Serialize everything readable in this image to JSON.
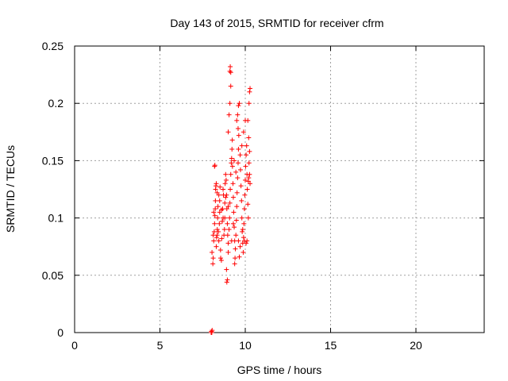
{
  "chart_data": {
    "type": "scatter",
    "title": "Day 143 of 2015, SRMTID for receiver cfrm",
    "xlabel": "GPS time / hours",
    "ylabel": "SRMTID / TECUs",
    "xlim": [
      0,
      24
    ],
    "ylim": [
      0,
      0.25
    ],
    "xticks": [
      "0",
      "5",
      "10",
      "15",
      "20"
    ],
    "yticks": [
      "0",
      "0.05",
      "0.1",
      "0.15",
      "0.2",
      "0.25"
    ],
    "grid": true,
    "marker": "plus",
    "color": "#ff0000",
    "points": [
      [
        8.0,
        0.0
      ],
      [
        8.02,
        0.001
      ],
      [
        8.04,
        0.0
      ],
      [
        8.06,
        0.002
      ],
      [
        8.01,
        0.0
      ],
      [
        8.05,
        0.07
      ],
      [
        8.1,
        0.06
      ],
      [
        8.12,
        0.065
      ],
      [
        8.15,
        0.08
      ],
      [
        8.18,
        0.088
      ],
      [
        8.2,
        0.095
      ],
      [
        8.22,
        0.102
      ],
      [
        8.24,
        0.108
      ],
      [
        8.25,
        0.115
      ],
      [
        8.26,
        0.125
      ],
      [
        8.28,
        0.128
      ],
      [
        8.3,
        0.13
      ],
      [
        8.2,
        0.145
      ],
      [
        8.22,
        0.146
      ],
      [
        8.3,
        0.075
      ],
      [
        8.32,
        0.083
      ],
      [
        8.35,
        0.085
      ],
      [
        8.36,
        0.09
      ],
      [
        8.38,
        0.1
      ],
      [
        8.4,
        0.11
      ],
      [
        8.42,
        0.088
      ],
      [
        8.45,
        0.08
      ],
      [
        8.48,
        0.095
      ],
      [
        8.5,
        0.105
      ],
      [
        8.5,
        0.115
      ],
      [
        8.52,
        0.127
      ],
      [
        8.55,
        0.072
      ],
      [
        8.56,
        0.065
      ],
      [
        8.6,
        0.063
      ],
      [
        8.62,
        0.082
      ],
      [
        8.65,
        0.097
      ],
      [
        8.67,
        0.108
      ],
      [
        8.7,
        0.125
      ],
      [
        8.72,
        0.12
      ],
      [
        8.75,
        0.085
      ],
      [
        8.78,
        0.09
      ],
      [
        8.8,
        0.1
      ],
      [
        8.8,
        0.113
      ],
      [
        8.82,
        0.13
      ],
      [
        8.85,
        0.138
      ],
      [
        8.88,
        0.133
      ],
      [
        8.9,
        0.12
      ],
      [
        8.92,
        0.108
      ],
      [
        8.95,
        0.095
      ],
      [
        8.97,
        0.085
      ],
      [
        9.0,
        0.078
      ],
      [
        9.0,
        0.07
      ],
      [
        8.9,
        0.055
      ],
      [
        8.95,
        0.046
      ],
      [
        8.92,
        0.044
      ],
      [
        9.05,
        0.09
      ],
      [
        9.08,
        0.1
      ],
      [
        9.1,
        0.113
      ],
      [
        9.12,
        0.125
      ],
      [
        9.15,
        0.138
      ],
      [
        9.18,
        0.148
      ],
      [
        9.2,
        0.152
      ],
      [
        9.22,
        0.16
      ],
      [
        9.24,
        0.168
      ],
      [
        9.05,
        0.19
      ],
      [
        9.0,
        0.175
      ],
      [
        9.1,
        0.2
      ],
      [
        9.15,
        0.227
      ],
      [
        9.12,
        0.232
      ],
      [
        9.1,
        0.228
      ],
      [
        9.15,
        0.215
      ],
      [
        9.25,
        0.145
      ],
      [
        9.28,
        0.13
      ],
      [
        9.3,
        0.118
      ],
      [
        9.32,
        0.105
      ],
      [
        9.35,
        0.092
      ],
      [
        9.38,
        0.08
      ],
      [
        9.4,
        0.065
      ],
      [
        9.38,
        0.06
      ],
      [
        9.42,
        0.073
      ],
      [
        9.45,
        0.085
      ],
      [
        9.48,
        0.098
      ],
      [
        9.5,
        0.11
      ],
      [
        9.52,
        0.122
      ],
      [
        9.55,
        0.135
      ],
      [
        9.58,
        0.148
      ],
      [
        9.6,
        0.16
      ],
      [
        9.62,
        0.172
      ],
      [
        9.5,
        0.185
      ],
      [
        9.55,
        0.19
      ],
      [
        9.6,
        0.198
      ],
      [
        9.65,
        0.2
      ],
      [
        9.58,
        0.178
      ],
      [
        9.7,
        0.155
      ],
      [
        9.72,
        0.142
      ],
      [
        9.75,
        0.128
      ],
      [
        9.78,
        0.115
      ],
      [
        9.8,
        0.1
      ],
      [
        9.82,
        0.088
      ],
      [
        9.85,
        0.078
      ],
      [
        9.88,
        0.07
      ],
      [
        9.9,
        0.083
      ],
      [
        9.92,
        0.095
      ],
      [
        9.95,
        0.108
      ],
      [
        9.97,
        0.12
      ],
      [
        10.0,
        0.133
      ],
      [
        10.02,
        0.145
      ],
      [
        10.05,
        0.155
      ],
      [
        10.08,
        0.163
      ],
      [
        10.1,
        0.138
      ],
      [
        10.12,
        0.125
      ],
      [
        10.15,
        0.112
      ],
      [
        10.18,
        0.1
      ],
      [
        10.2,
        0.135
      ],
      [
        10.22,
        0.148
      ],
      [
        10.25,
        0.158
      ],
      [
        10.2,
        0.17
      ],
      [
        10.15,
        0.185
      ],
      [
        10.22,
        0.2
      ],
      [
        10.25,
        0.21
      ],
      [
        10.28,
        0.213
      ],
      [
        10.1,
        0.08
      ],
      [
        10.05,
        0.078
      ],
      [
        9.95,
        0.08
      ],
      [
        9.85,
        0.09
      ],
      [
        9.7,
        0.075
      ],
      [
        9.65,
        0.066
      ],
      [
        9.6,
        0.08
      ],
      [
        9.3,
        0.095
      ],
      [
        9.2,
        0.08
      ],
      [
        9.0,
        0.11
      ],
      [
        8.85,
        0.118
      ],
      [
        8.7,
        0.1
      ],
      [
        8.6,
        0.107
      ],
      [
        8.45,
        0.12
      ],
      [
        8.35,
        0.122
      ],
      [
        8.15,
        0.105
      ],
      [
        8.12,
        0.085
      ],
      [
        9.45,
        0.14
      ],
      [
        9.35,
        0.15
      ],
      [
        9.8,
        0.163
      ],
      [
        9.9,
        0.175
      ],
      [
        10.0,
        0.185
      ],
      [
        10.25,
        0.138
      ],
      [
        10.18,
        0.132
      ],
      [
        10.28,
        0.13
      ]
    ]
  }
}
